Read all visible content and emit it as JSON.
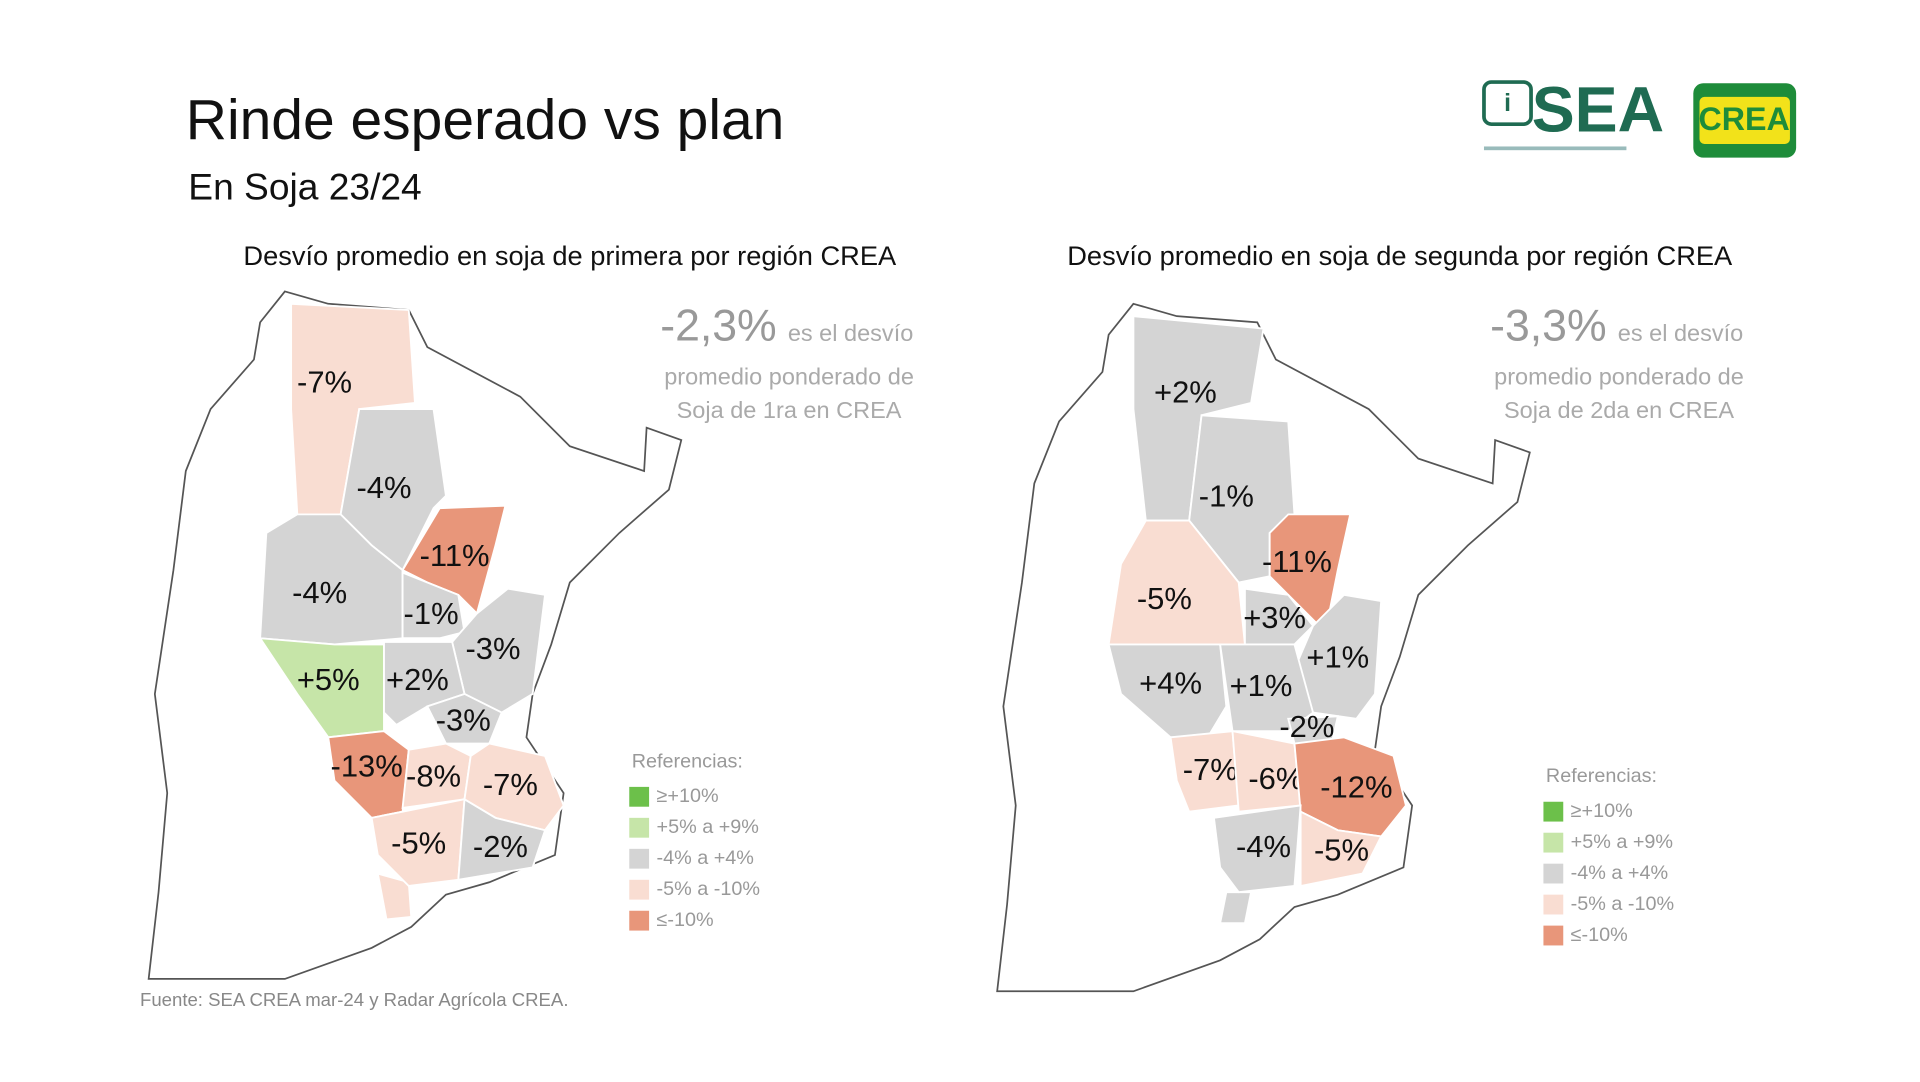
{
  "header": {
    "title": "Rinde esperado vs plan",
    "subtitle": "En Soja 23/24"
  },
  "logos": {
    "sea": "SEA",
    "crea": "CREA"
  },
  "maps": [
    {
      "title": "Desvío promedio en soja de primera por región CREA",
      "summary": {
        "value": "-2,3%",
        "text": "es el desvío",
        "lines": [
          "promedio ponderado de",
          "Soja de 1ra en CREA"
        ]
      },
      "legend": {
        "title": "Referencias:",
        "items": [
          {
            "label": "≥+10%",
            "color": "#6cc04a"
          },
          {
            "label": "+5% a +9%",
            "color": "#c6e5a8"
          },
          {
            "label": "-4% a +4%",
            "color": "#d4d4d4"
          },
          {
            "label": "-5% a -10%",
            "color": "#f9ddd2"
          },
          {
            "label": "≤-10%",
            "color": "#e8967a"
          }
        ]
      },
      "regions": [
        {
          "label": "-7%",
          "color": "#f9ddd2"
        },
        {
          "label": "-4%",
          "color": "#d4d4d4"
        },
        {
          "label": "-11%",
          "color": "#e8967a"
        },
        {
          "label": "-4%",
          "color": "#d4d4d4"
        },
        {
          "label": "-1%",
          "color": "#d4d4d4"
        },
        {
          "label": "-3%",
          "color": "#d4d4d4"
        },
        {
          "label": "+5%",
          "color": "#c6e5a8"
        },
        {
          "label": "+2%",
          "color": "#d4d4d4"
        },
        {
          "label": "-3%",
          "color": "#d4d4d4"
        },
        {
          "label": "-13%",
          "color": "#e8967a"
        },
        {
          "label": "-8%",
          "color": "#f9ddd2"
        },
        {
          "label": "-7%",
          "color": "#f9ddd2"
        },
        {
          "label": "-5%",
          "color": "#f9ddd2"
        },
        {
          "label": "-2%",
          "color": "#d4d4d4"
        }
      ]
    },
    {
      "title": "Desvío promedio en soja de segunda por región CREA",
      "summary": {
        "value": "-3,3%",
        "text": "es el desvío",
        "lines": [
          "promedio ponderado de",
          "Soja de 2da en CREA"
        ]
      },
      "legend": {
        "title": "Referencias:",
        "items": [
          {
            "label": "≥+10%",
            "color": "#6cc04a"
          },
          {
            "label": "+5% a +9%",
            "color": "#c6e5a8"
          },
          {
            "label": "-4% a +4%",
            "color": "#d4d4d4"
          },
          {
            "label": "-5% a -10%",
            "color": "#f9ddd2"
          },
          {
            "label": "≤-10%",
            "color": "#e8967a"
          }
        ]
      },
      "regions": [
        {
          "label": "+2%",
          "color": "#d4d4d4"
        },
        {
          "label": "-1%",
          "color": "#d4d4d4"
        },
        {
          "label": "-11%",
          "color": "#e8967a"
        },
        {
          "label": "-5%",
          "color": "#f9ddd2"
        },
        {
          "label": "+3%",
          "color": "#d4d4d4"
        },
        {
          "label": "+1%",
          "color": "#d4d4d4"
        },
        {
          "label": "+4%",
          "color": "#d4d4d4"
        },
        {
          "label": "+1%",
          "color": "#d4d4d4"
        },
        {
          "label": "-2%",
          "color": "#d4d4d4"
        },
        {
          "label": "-7%",
          "color": "#f9ddd2"
        },
        {
          "label": "-6%",
          "color": "#f9ddd2"
        },
        {
          "label": "-12%",
          "color": "#e8967a"
        },
        {
          "label": "-4%",
          "color": "#d4d4d4"
        },
        {
          "label": "-5%",
          "color": "#f9ddd2"
        }
      ]
    }
  ],
  "footer": "Fuente: SEA CREA mar-24 y Radar Agrícola CREA."
}
